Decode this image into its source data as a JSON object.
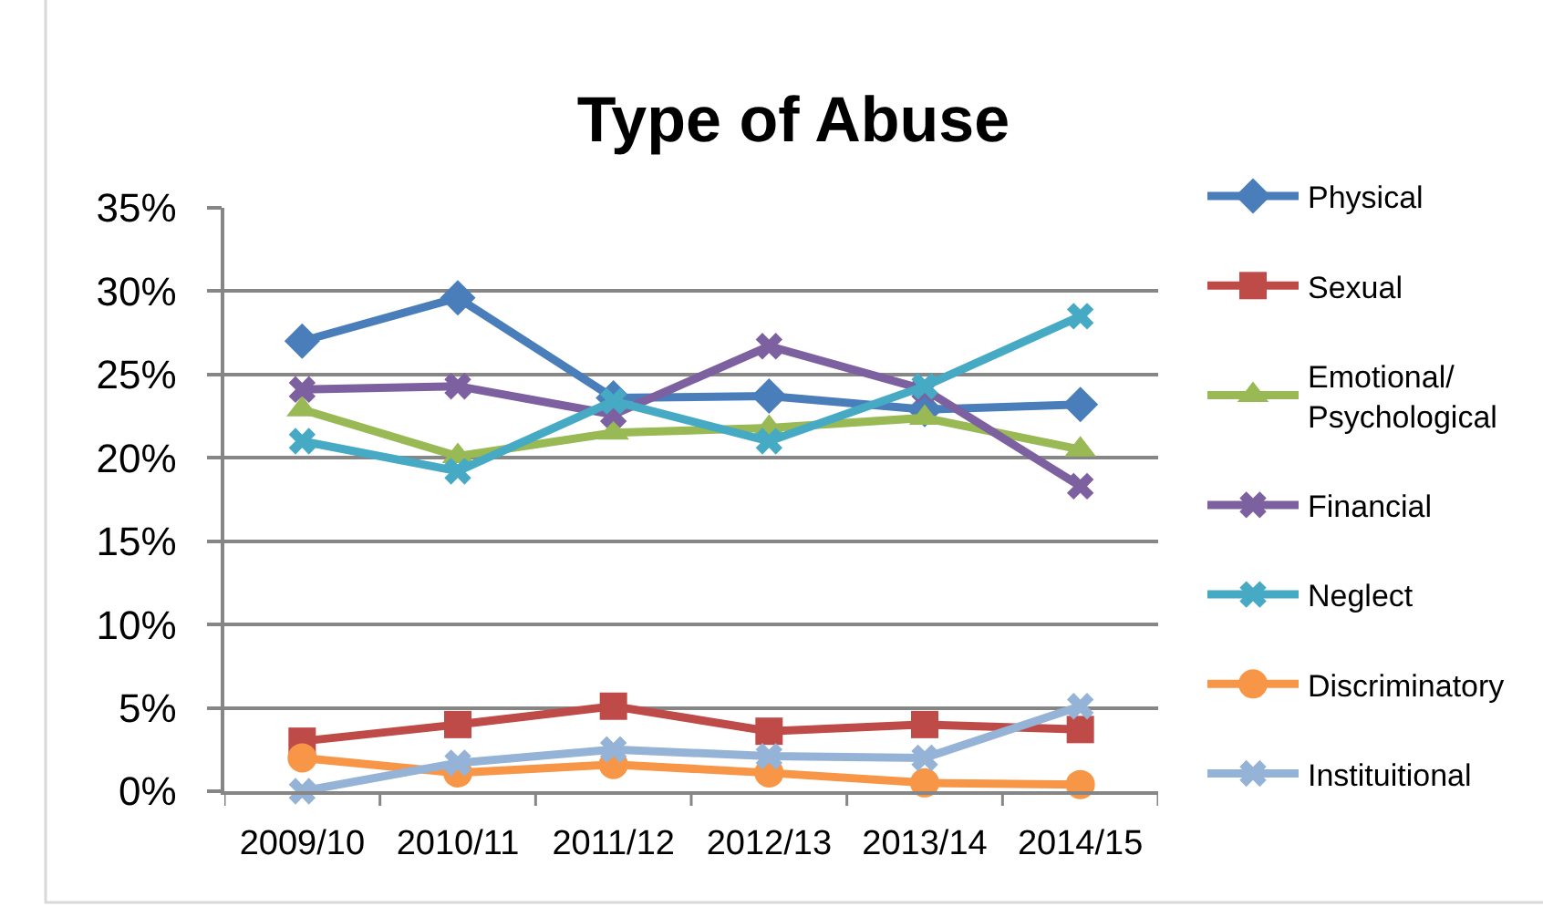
{
  "chart_data": {
    "type": "line",
    "title": "Type of Abuse",
    "categories": [
      "2009/10",
      "2010/11",
      "2011/12",
      "2012/13",
      "2013/14",
      "2014/15"
    ],
    "series": [
      {
        "name": "Physical",
        "color": "#4a7ebb",
        "marker": "diamond",
        "values": [
          27.0,
          29.6,
          23.6,
          23.7,
          22.9,
          23.2
        ]
      },
      {
        "name": "Sexual",
        "color": "#be4b48",
        "marker": "square",
        "values": [
          3.0,
          4.0,
          5.1,
          3.6,
          4.0,
          3.7
        ]
      },
      {
        "name": "Emotional/\nPsychological",
        "color": "#98b954",
        "marker": "triangle",
        "values": [
          22.9,
          20.1,
          21.5,
          21.8,
          22.4,
          20.5
        ]
      },
      {
        "name": "Financial",
        "color": "#7d60a0",
        "marker": "cross",
        "values": [
          24.1,
          24.3,
          22.6,
          26.7,
          24.1,
          18.3
        ]
      },
      {
        "name": "Neglect",
        "color": "#46aac5",
        "marker": "cross",
        "values": [
          21.0,
          19.2,
          23.4,
          21.0,
          24.3,
          28.5
        ]
      },
      {
        "name": "Discriminatory",
        "color": "#f79646",
        "marker": "circle",
        "values": [
          2.0,
          1.1,
          1.6,
          1.1,
          0.5,
          0.4
        ]
      },
      {
        "name": "Instituitional",
        "color": "#95b3d7",
        "marker": "cross",
        "values": [
          0.0,
          1.7,
          2.5,
          2.1,
          2.0,
          5.1
        ]
      }
    ],
    "ylim": [
      0,
      35
    ],
    "yticks": [
      {
        "value": 0,
        "label": "0%"
      },
      {
        "value": 5,
        "label": "5%"
      },
      {
        "value": 10,
        "label": "10%"
      },
      {
        "value": 15,
        "label": "15%"
      },
      {
        "value": 20,
        "label": "20%"
      },
      {
        "value": 25,
        "label": "25%"
      },
      {
        "value": 30,
        "label": "30%"
      },
      {
        "value": 35,
        "label": "35%"
      }
    ],
    "grid": "y",
    "legend": "right",
    "line_style": "solid"
  }
}
